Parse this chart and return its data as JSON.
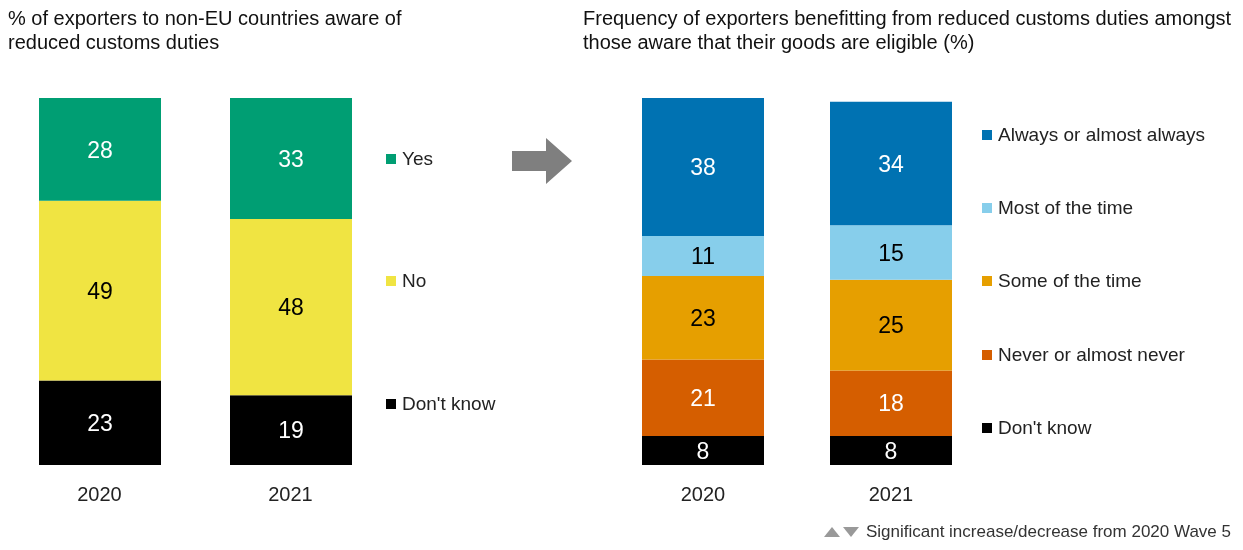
{
  "chart_data": [
    {
      "type": "bar",
      "title": "% of exporters to non-EU countries aware of reduced customs duties",
      "categories": [
        "2020",
        "2021"
      ],
      "stacked": true,
      "data_labels": true,
      "legend": "right",
      "tick_labels": "x",
      "ylim": [
        0,
        100
      ],
      "series": [
        {
          "name": "Don't know",
          "color": "#000000",
          "values": [
            23,
            19
          ]
        },
        {
          "name": "No",
          "color": "#f0e442",
          "values": [
            49,
            48
          ]
        },
        {
          "name": "Yes",
          "color": "#009e73",
          "values": [
            28,
            33
          ]
        }
      ]
    },
    {
      "type": "bar",
      "title": "Frequency of exporters benefitting from reduced customs duties amongst those aware that their goods are eligible (%)",
      "categories": [
        "2020",
        "2021"
      ],
      "stacked": true,
      "data_labels": true,
      "legend": "right",
      "tick_labels": "x",
      "ylim": [
        0,
        101
      ],
      "annotations": [
        "Significant increase/decrease from 2020 Wave 5"
      ],
      "series": [
        {
          "name": "Don't know",
          "color": "#000000",
          "values": [
            8,
            8
          ]
        },
        {
          "name": "Never or almost never",
          "color": "#d55e00",
          "values": [
            21,
            18
          ]
        },
        {
          "name": "Some of the time",
          "color": "#e69f00",
          "values": [
            23,
            25
          ]
        },
        {
          "name": "Most of the time",
          "color": "#87ceeb",
          "values": [
            11,
            15
          ]
        },
        {
          "name": "Always or almost always",
          "color": "#0072b2",
          "values": [
            38,
            34
          ]
        }
      ]
    }
  ]
}
